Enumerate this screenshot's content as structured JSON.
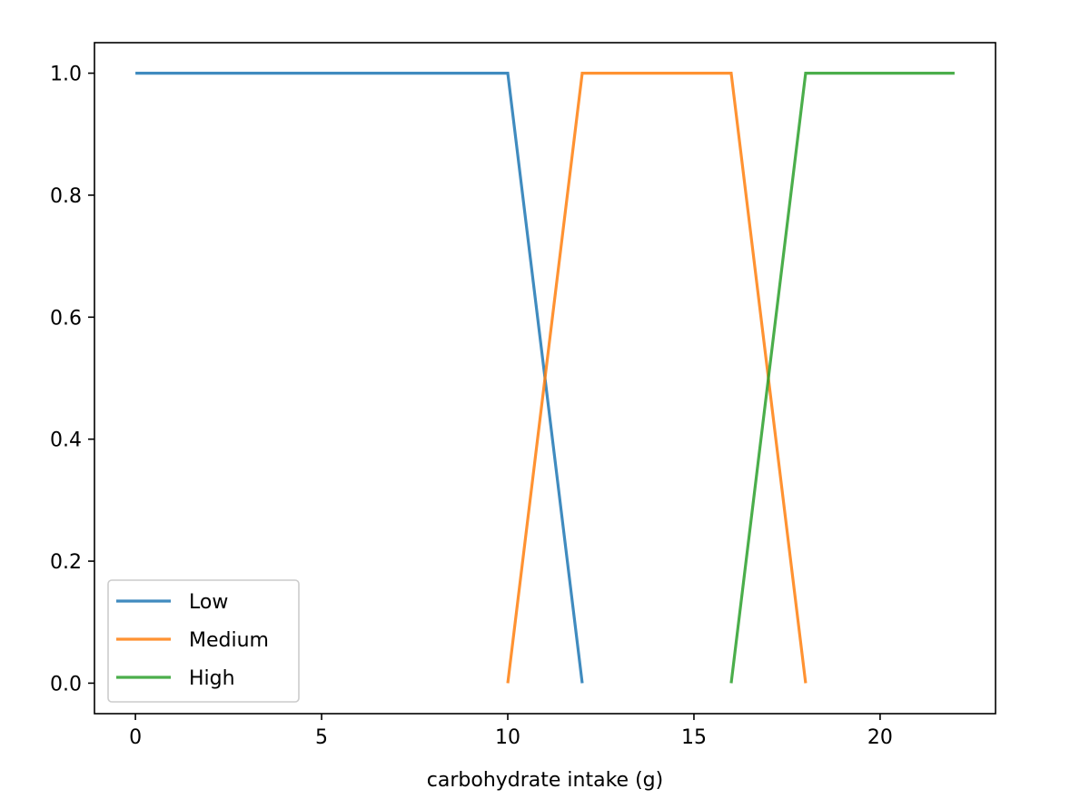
{
  "chart_data": {
    "type": "line",
    "title": "",
    "xlabel": "carbohydrate intake (g)",
    "ylabel": "",
    "xlim": [
      -1.1,
      23.1
    ],
    "ylim": [
      -0.05,
      1.05
    ],
    "xticks": [
      0,
      5,
      10,
      15,
      20
    ],
    "yticks": [
      0.0,
      0.2,
      0.4,
      0.6,
      0.8,
      1.0
    ],
    "xtick_labels": [
      "0",
      "5",
      "10",
      "15",
      "20"
    ],
    "ytick_labels": [
      "0.0",
      "0.2",
      "0.4",
      "0.6",
      "0.8",
      "1.0"
    ],
    "grid": false,
    "legend_position": "lower-left",
    "series": [
      {
        "name": "Low",
        "color": "#1f77b4",
        "x": [
          0,
          10,
          12
        ],
        "y": [
          1,
          1,
          0
        ]
      },
      {
        "name": "Medium",
        "color": "#ff7f0e",
        "x": [
          10,
          12,
          16,
          18
        ],
        "y": [
          0,
          1,
          1,
          0
        ]
      },
      {
        "name": "High",
        "color": "#2ca02c",
        "x": [
          16,
          18,
          22
        ],
        "y": [
          0,
          1,
          1
        ]
      }
    ]
  }
}
